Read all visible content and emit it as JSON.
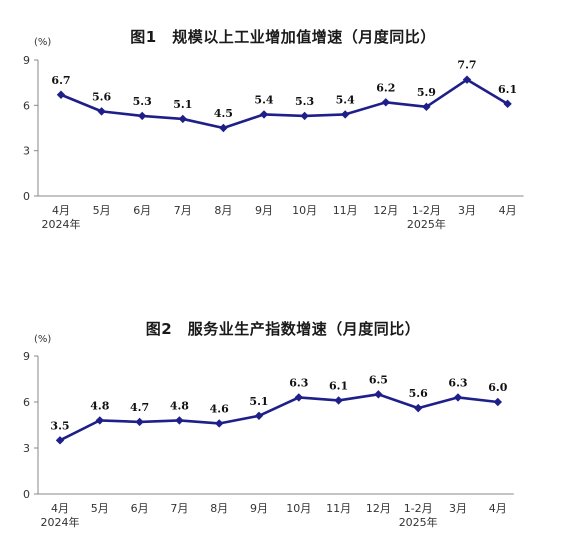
{
  "chart_data": [
    {
      "type": "line",
      "title": "图1　规模以上工业增加值增速（月度同比）",
      "ylabel": "(%)",
      "ylim": [
        0,
        9
      ],
      "yticks": [
        "0",
        "3",
        "6",
        "9"
      ],
      "categories": [
        "4月",
        "5月",
        "6月",
        "7月",
        "8月",
        "9月",
        "10月",
        "11月",
        "12月",
        "1-2月",
        "3月",
        "4月"
      ],
      "year_labels": [
        {
          "index": 0,
          "label": "2024年"
        },
        {
          "index": 9,
          "label": "2025年"
        }
      ],
      "values": [
        6.7,
        5.6,
        5.3,
        5.1,
        4.5,
        5.4,
        5.3,
        5.4,
        6.2,
        5.9,
        7.7,
        6.1
      ],
      "series_color": "#1f1f8a",
      "axis_color": "#888888"
    },
    {
      "type": "line",
      "title": "图2　服务业生产指数增速（月度同比）",
      "ylabel": "(%)",
      "ylim": [
        0,
        9
      ],
      "yticks": [
        "0",
        "3",
        "6",
        "9"
      ],
      "categories": [
        "4月",
        "5月",
        "6月",
        "7月",
        "8月",
        "9月",
        "10月",
        "11月",
        "12月",
        "1-2月",
        "3月",
        "4月"
      ],
      "year_labels": [
        {
          "index": 0,
          "label": "2024年"
        },
        {
          "index": 9,
          "label": "2025年"
        }
      ],
      "values": [
        3.5,
        4.8,
        4.7,
        4.8,
        4.6,
        5.1,
        6.3,
        6.1,
        6.5,
        5.6,
        6.3,
        6.0
      ],
      "series_color": "#1f1f8a",
      "axis_color": "#888888"
    }
  ]
}
